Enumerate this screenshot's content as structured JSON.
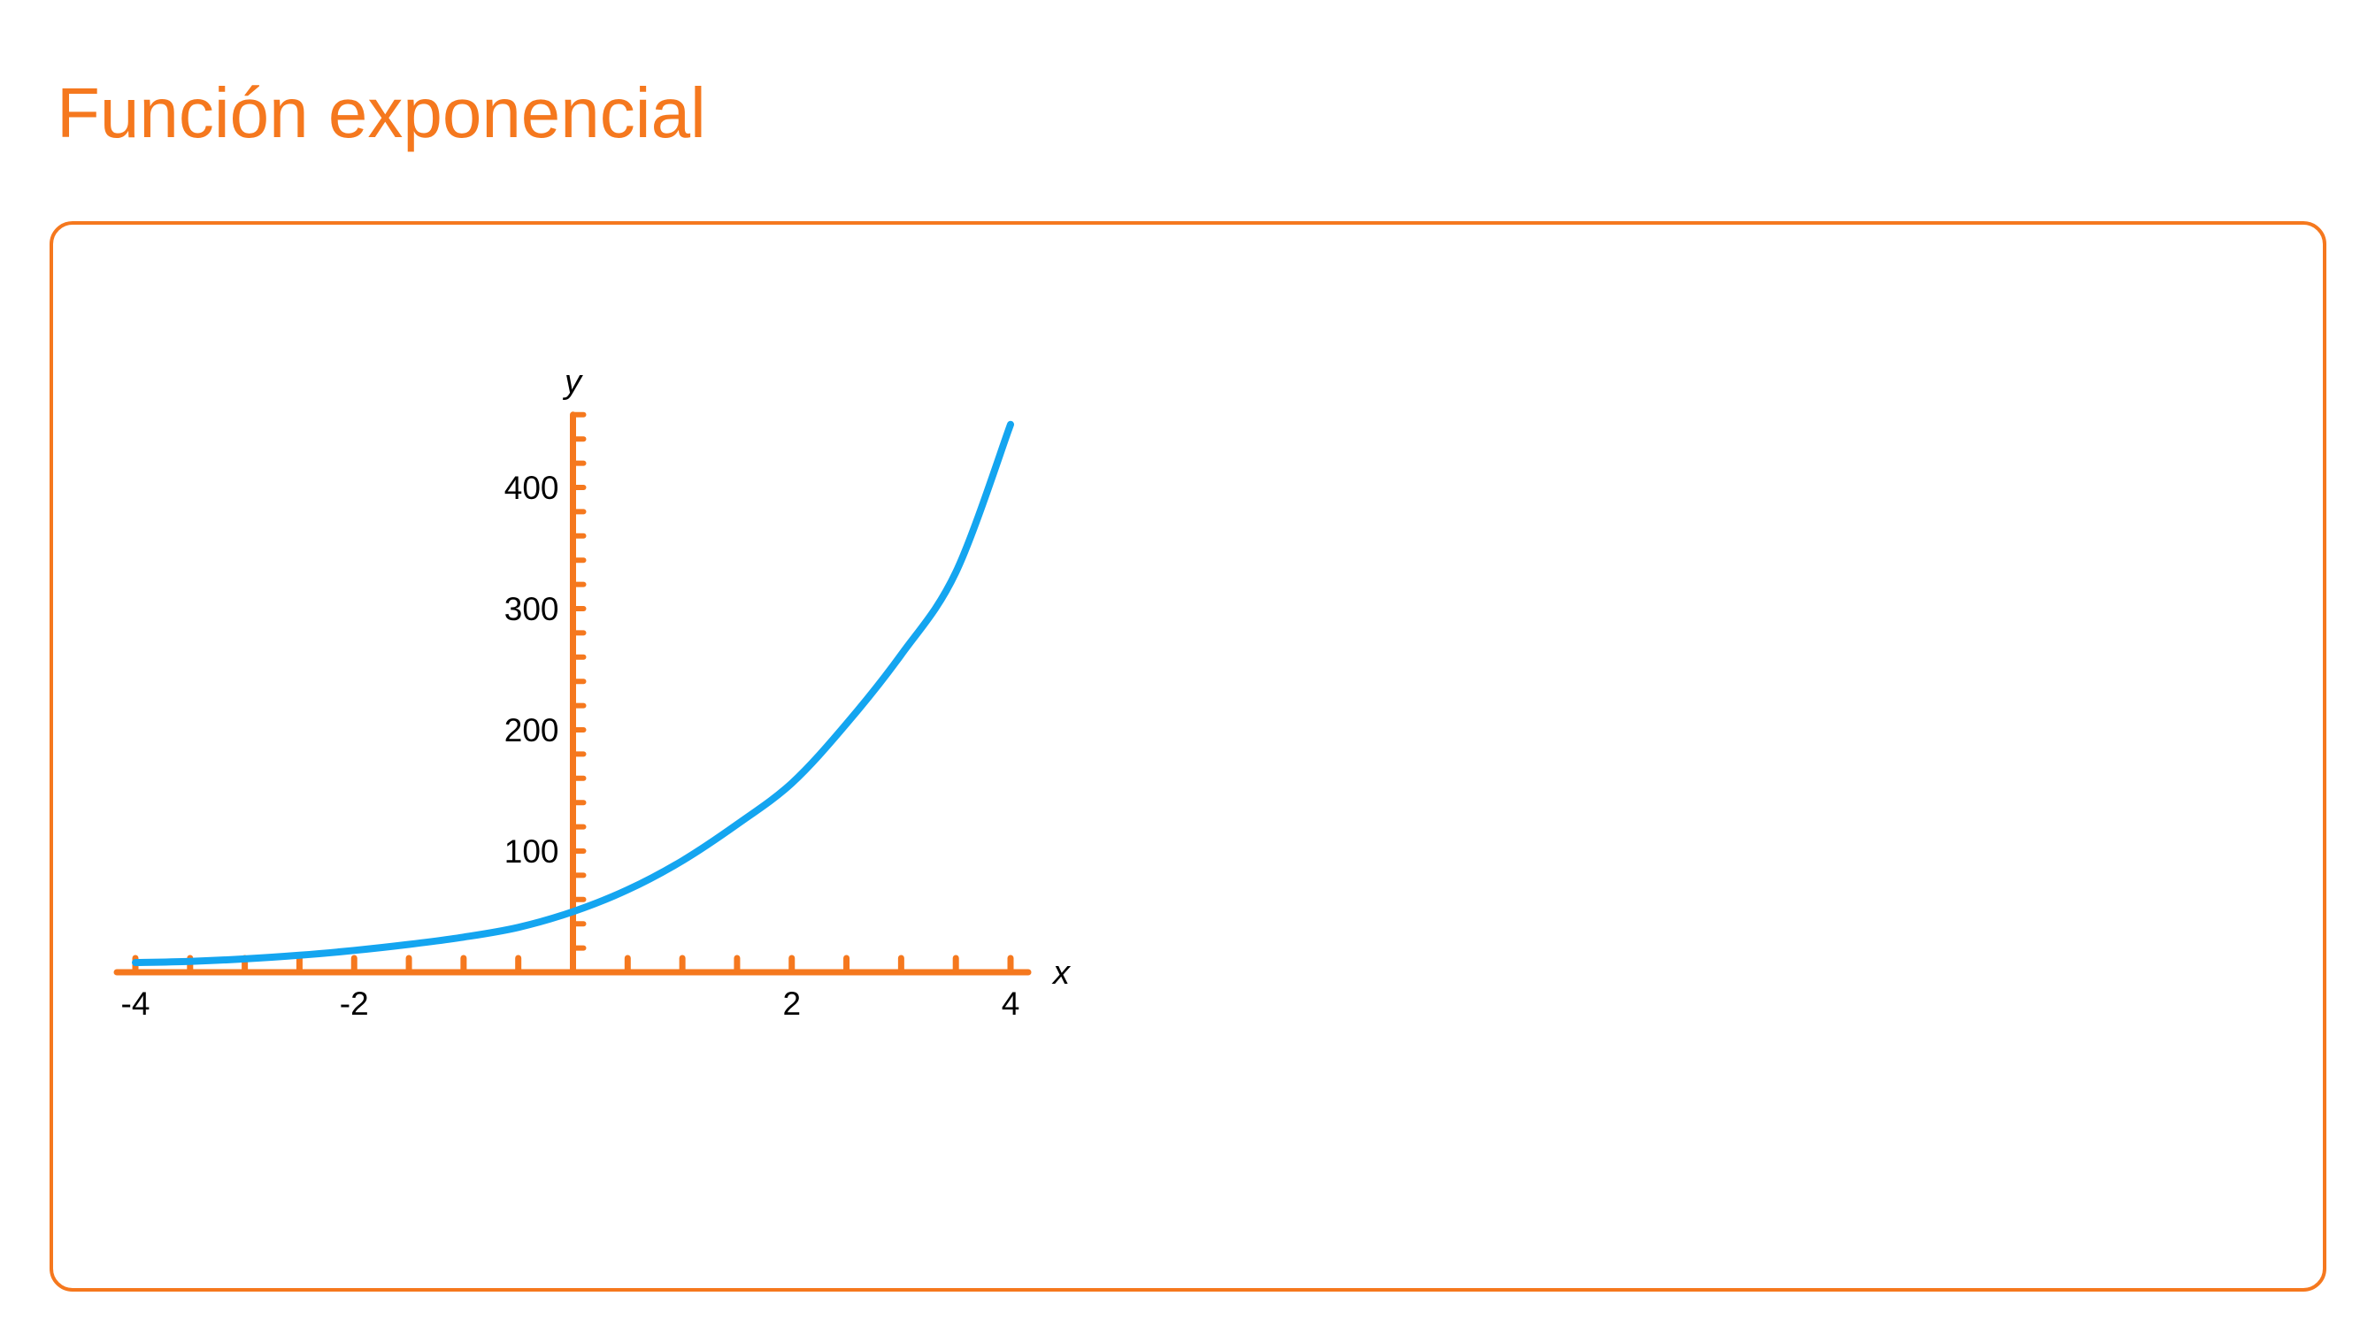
{
  "page": {
    "title": "Función exponencial"
  },
  "colors": {
    "accent": "#f5781e",
    "curve": "#14a5f0",
    "text": "#000000"
  },
  "chart_data": {
    "type": "line",
    "title": "",
    "xlabel": "x",
    "ylabel": "y",
    "xlim": [
      -4,
      4
    ],
    "ylim": [
      0,
      460
    ],
    "x_tick_labels": [
      "-4",
      "-2",
      "2",
      "4"
    ],
    "x_tick_values": [
      -4,
      -2,
      2,
      4
    ],
    "x_minor_step": 0.5,
    "y_tick_labels": [
      "100",
      "200",
      "300",
      "400"
    ],
    "y_tick_values": [
      100,
      200,
      300,
      400
    ],
    "y_minor_step": 20,
    "grid": false,
    "series": [
      {
        "x": [
          -4,
          -3.5,
          -3,
          -2.5,
          -2,
          -1.5,
          -1,
          -0.5,
          0,
          0.5,
          1,
          1.5,
          2,
          2.5,
          3,
          3.5,
          4
        ],
        "y": [
          8,
          9,
          11,
          14,
          18,
          23,
          29,
          37,
          50,
          68,
          92,
          122,
          156,
          205,
          262,
          330,
          452
        ]
      }
    ]
  }
}
